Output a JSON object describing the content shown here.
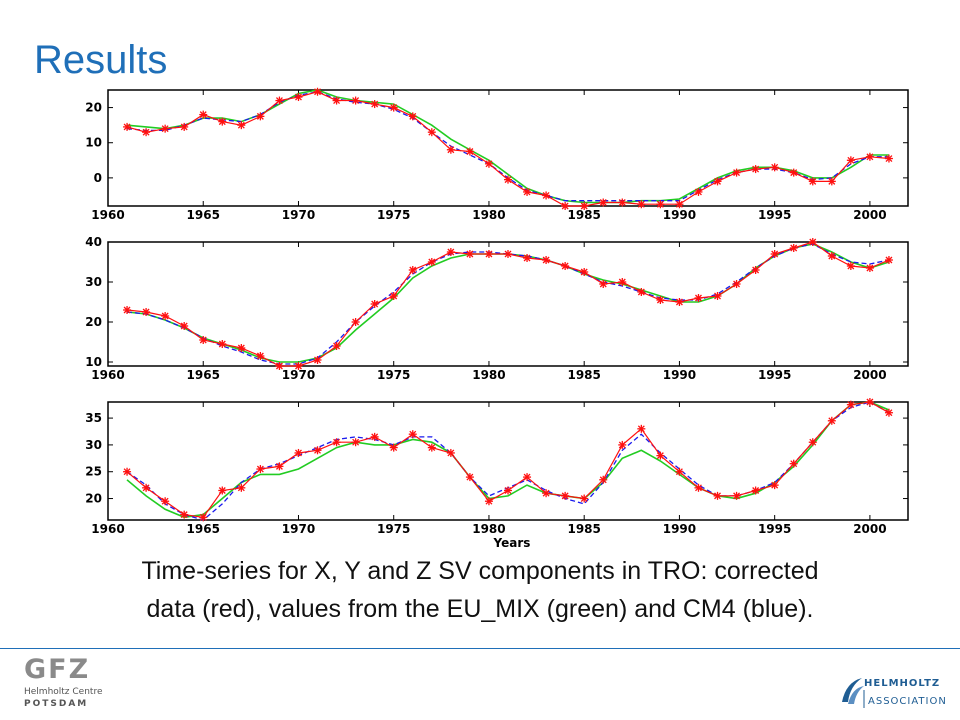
{
  "slide": {
    "title": "Results",
    "caption_line1": "Time-series for X, Y and  Z SV components in TRO: corrected",
    "caption_line2": "data (red), values from the  EU_MIX (green) and CM4 (blue)."
  },
  "logos": {
    "gfz_name": "GFZ",
    "gfz_line1": "Helmholtz Centre",
    "gfz_line2": "POTSDAM",
    "helmholtz_line1": "HELMHOLTZ",
    "helmholtz_line2": "ASSOCIATION"
  },
  "colors": {
    "title": "#1f6fb8",
    "red": "#ff1010",
    "green": "#22cc22",
    "blue": "#1a1aee"
  },
  "chart_data": [
    {
      "type": "line",
      "xlim": [
        1960,
        2002
      ],
      "ylim": [
        -8,
        25
      ],
      "xticks": [
        1960,
        1965,
        1970,
        1975,
        1980,
        1985,
        1990,
        1995,
        2000
      ],
      "yticks": [
        0,
        10,
        20
      ],
      "xlabel": "",
      "series": [
        {
          "style": "red-star",
          "x": [
            1961,
            1962,
            1963,
            1964,
            1965,
            1966,
            1967,
            1968,
            1969,
            1970,
            1971,
            1972,
            1973,
            1974,
            1975,
            1976,
            1977,
            1978,
            1979,
            1980,
            1981,
            1982,
            1983,
            1984,
            1985,
            1986,
            1987,
            1988,
            1989,
            1990,
            1991,
            1992,
            1993,
            1994,
            1995,
            1996,
            1997,
            1998,
            1999,
            2000,
            2001
          ],
          "values": [
            14.5,
            13,
            14,
            14.5,
            18,
            16,
            15,
            17.5,
            22,
            23,
            24.5,
            22,
            22,
            21,
            20,
            17.5,
            13,
            8,
            7.5,
            4,
            -0.5,
            -4,
            -5,
            -8,
            -8,
            -7,
            -7,
            -7.5,
            -7.5,
            -7.5,
            -4,
            -1,
            1.5,
            2.5,
            3,
            1.5,
            -1,
            -1,
            5,
            6,
            5.5
          ]
        },
        {
          "style": "green",
          "x": [
            1961,
            1962,
            1963,
            1964,
            1965,
            1966,
            1967,
            1968,
            1969,
            1970,
            1971,
            1972,
            1973,
            1974,
            1975,
            1976,
            1977,
            1978,
            1979,
            1980,
            1981,
            1982,
            1983,
            1984,
            1985,
            1986,
            1987,
            1988,
            1989,
            1990,
            1991,
            1992,
            1993,
            1994,
            1995,
            1996,
            1997,
            1998,
            1999,
            2000,
            2001
          ],
          "values": [
            15,
            14.5,
            14,
            15,
            17,
            17,
            16,
            18,
            21,
            24,
            25,
            23,
            22,
            21.5,
            21,
            18,
            15,
            11,
            8,
            5,
            1,
            -3,
            -5,
            -6.5,
            -7,
            -7,
            -7,
            -6.5,
            -6.5,
            -6,
            -3,
            0,
            2,
            3,
            3,
            2,
            0,
            0,
            3,
            6.5,
            6.5
          ]
        },
        {
          "style": "blue-dash",
          "x": [
            1961,
            1962,
            1963,
            1964,
            1965,
            1966,
            1967,
            1968,
            1969,
            1970,
            1971,
            1972,
            1973,
            1974,
            1975,
            1976,
            1977,
            1978,
            1979,
            1980,
            1981,
            1982,
            1983,
            1984,
            1985,
            1986,
            1987,
            1988,
            1989,
            1990,
            1991,
            1992,
            1993,
            1994,
            1995,
            1996,
            1997,
            1998,
            1999,
            2000,
            2001
          ],
          "values": [
            14,
            13.5,
            13.5,
            15,
            17,
            16.5,
            16,
            18,
            21.5,
            23.5,
            24.5,
            22.5,
            21.5,
            21,
            19.5,
            17,
            13,
            9,
            6.5,
            4,
            0,
            -3.5,
            -5,
            -6.5,
            -6.5,
            -6.5,
            -6.5,
            -6.5,
            -6.5,
            -6.5,
            -3.5,
            -0.5,
            1.5,
            2.5,
            2.5,
            1.5,
            -0.5,
            0,
            4,
            6,
            6
          ]
        }
      ]
    },
    {
      "type": "line",
      "xlim": [
        1960,
        2002
      ],
      "ylim": [
        9,
        40
      ],
      "xticks": [
        1960,
        1965,
        1970,
        1975,
        1980,
        1985,
        1990,
        1995,
        2000
      ],
      "yticks": [
        10,
        20,
        30,
        40
      ],
      "xlabel": "",
      "series": [
        {
          "style": "red-star",
          "x": [
            1961,
            1962,
            1963,
            1964,
            1965,
            1966,
            1967,
            1968,
            1969,
            1970,
            1971,
            1972,
            1973,
            1974,
            1975,
            1976,
            1977,
            1978,
            1979,
            1980,
            1981,
            1982,
            1983,
            1984,
            1985,
            1986,
            1987,
            1988,
            1989,
            1990,
            1991,
            1992,
            1993,
            1994,
            1995,
            1996,
            1997,
            1998,
            1999,
            2000,
            2001
          ],
          "values": [
            23,
            22.5,
            21.5,
            19,
            15.5,
            14.5,
            13.5,
            11.5,
            9,
            9,
            10.5,
            14,
            20,
            24.5,
            26.5,
            33,
            35,
            37.5,
            37,
            37,
            37,
            36,
            35.5,
            34,
            32.5,
            29.5,
            30,
            27.5,
            25.5,
            25,
            26,
            26.5,
            29.5,
            33,
            37,
            38.5,
            40,
            36.5,
            34,
            33.5,
            35.5
          ]
        },
        {
          "style": "green",
          "x": [
            1961,
            1962,
            1963,
            1964,
            1965,
            1966,
            1967,
            1968,
            1969,
            1970,
            1971,
            1972,
            1973,
            1974,
            1975,
            1976,
            1977,
            1978,
            1979,
            1980,
            1981,
            1982,
            1983,
            1984,
            1985,
            1986,
            1987,
            1988,
            1989,
            1990,
            1991,
            1992,
            1993,
            1994,
            1995,
            1996,
            1997,
            1998,
            1999,
            2000,
            2001
          ],
          "values": [
            22.5,
            22,
            20.5,
            18.5,
            16,
            14.5,
            13,
            11,
            10,
            10,
            11,
            13.5,
            18,
            22,
            26,
            31,
            34,
            36,
            37,
            37,
            37,
            36.5,
            35.5,
            34,
            32,
            30.5,
            29.5,
            28,
            26.5,
            25,
            25,
            26.5,
            29.5,
            33.5,
            36.5,
            38.5,
            39.5,
            37.5,
            35,
            33.5,
            35
          ]
        },
        {
          "style": "blue-dash",
          "x": [
            1961,
            1962,
            1963,
            1964,
            1965,
            1966,
            1967,
            1968,
            1969,
            1970,
            1971,
            1972,
            1973,
            1974,
            1975,
            1976,
            1977,
            1978,
            1979,
            1980,
            1981,
            1982,
            1983,
            1984,
            1985,
            1986,
            1987,
            1988,
            1989,
            1990,
            1991,
            1992,
            1993,
            1994,
            1995,
            1996,
            1997,
            1998,
            1999,
            2000,
            2001
          ],
          "values": [
            22.5,
            22,
            20.5,
            18.5,
            16,
            14,
            12.5,
            10.5,
            9.5,
            9.5,
            11,
            15,
            20,
            24,
            27.5,
            32,
            35,
            37,
            37.5,
            37.5,
            37,
            36.5,
            35.5,
            34,
            32,
            30,
            29,
            27.5,
            26,
            25.5,
            25.5,
            27,
            30,
            33.5,
            36.5,
            38.5,
            39.5,
            37,
            35,
            34.5,
            35.5
          ]
        }
      ]
    },
    {
      "type": "line",
      "xlim": [
        1960,
        2002
      ],
      "ylim": [
        16,
        38
      ],
      "xticks": [
        1960,
        1965,
        1970,
        1975,
        1980,
        1985,
        1990,
        1995,
        2000
      ],
      "yticks": [
        20,
        25,
        30,
        35
      ],
      "xlabel": "Years",
      "series": [
        {
          "style": "red-star",
          "x": [
            1961,
            1962,
            1963,
            1964,
            1965,
            1966,
            1967,
            1968,
            1969,
            1970,
            1971,
            1972,
            1973,
            1974,
            1975,
            1976,
            1977,
            1978,
            1979,
            1980,
            1981,
            1982,
            1983,
            1984,
            1985,
            1986,
            1987,
            1988,
            1989,
            1990,
            1991,
            1992,
            1993,
            1994,
            1995,
            1996,
            1997,
            1998,
            1999,
            2000,
            2001
          ],
          "values": [
            25,
            22,
            19.5,
            17,
            16.5,
            21.5,
            22,
            25.5,
            26,
            28.5,
            29,
            30.5,
            30.5,
            31.5,
            29.5,
            32,
            29.5,
            28.5,
            24,
            19.5,
            21.5,
            24,
            21,
            20.5,
            20,
            23.5,
            30,
            33,
            28,
            25,
            22,
            20.5,
            20.5,
            21.5,
            22.5,
            26.5,
            30.5,
            34.5,
            37.5,
            38,
            36
          ]
        },
        {
          "style": "green",
          "x": [
            1961,
            1962,
            1963,
            1964,
            1965,
            1966,
            1967,
            1968,
            1969,
            1970,
            1971,
            1972,
            1973,
            1974,
            1975,
            1976,
            1977,
            1978,
            1979,
            1980,
            1981,
            1982,
            1983,
            1984,
            1985,
            1986,
            1987,
            1988,
            1989,
            1990,
            1991,
            1992,
            1993,
            1994,
            1995,
            1996,
            1997,
            1998,
            1999,
            2000,
            2001
          ],
          "values": [
            23.5,
            20.5,
            18,
            16.5,
            17,
            20,
            23,
            24.5,
            24.5,
            25.5,
            27.5,
            29.5,
            30.5,
            30,
            30,
            31,
            30.5,
            28.5,
            24,
            20,
            20.5,
            22.5,
            21,
            20.5,
            20,
            23,
            27.5,
            29,
            27,
            24.5,
            22,
            20.5,
            20,
            21,
            23,
            26,
            30,
            34.5,
            37.5,
            38,
            36.5
          ]
        },
        {
          "style": "blue-dash",
          "x": [
            1961,
            1962,
            1963,
            1964,
            1965,
            1966,
            1967,
            1968,
            1969,
            1970,
            1971,
            1972,
            1973,
            1974,
            1975,
            1976,
            1977,
            1978,
            1979,
            1980,
            1981,
            1982,
            1983,
            1984,
            1985,
            1986,
            1987,
            1988,
            1989,
            1990,
            1991,
            1992,
            1993,
            1994,
            1995,
            1996,
            1997,
            1998,
            1999,
            2000,
            2001
          ],
          "values": [
            25,
            22.5,
            19,
            17,
            16,
            19,
            23,
            25.5,
            26.5,
            28,
            29.5,
            31,
            31.5,
            31,
            30,
            31.5,
            31.5,
            28.5,
            24,
            20.5,
            22,
            23.5,
            21.5,
            20,
            19,
            23,
            29,
            32,
            28.5,
            25.5,
            22.5,
            20.5,
            20.5,
            21.5,
            23,
            26.5,
            30.5,
            34.5,
            37,
            38,
            36
          ]
        }
      ]
    }
  ]
}
